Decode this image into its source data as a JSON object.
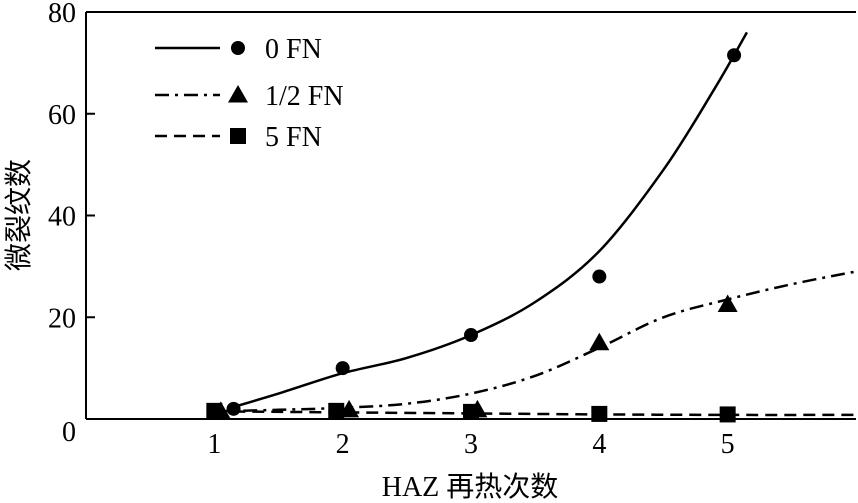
{
  "chart_data": {
    "type": "line",
    "title": "",
    "xlabel": "HAZ 再热次数",
    "ylabel": "微裂纹数",
    "xlim": [
      0,
      6
    ],
    "ylim": [
      0,
      80
    ],
    "x_ticks": [
      1,
      2,
      3,
      4,
      5
    ],
    "y_ticks": [
      0,
      20,
      40,
      60,
      80
    ],
    "grid": false,
    "legend_position": "top-left",
    "series": [
      {
        "name": "0 FN",
        "line_style": "solid",
        "marker": "circle",
        "points": [
          [
            1.15,
            2
          ],
          [
            2.0,
            10
          ],
          [
            3.0,
            16.5
          ],
          [
            4.0,
            28
          ],
          [
            5.05,
            71.5
          ]
        ],
        "curve": [
          [
            1.1,
            2
          ],
          [
            1.5,
            5
          ],
          [
            2.0,
            9
          ],
          [
            2.5,
            12
          ],
          [
            3.0,
            16.5
          ],
          [
            3.5,
            23
          ],
          [
            4.0,
            33
          ],
          [
            4.5,
            49
          ],
          [
            4.9,
            65
          ],
          [
            5.15,
            76
          ]
        ]
      },
      {
        "name": "1/2 FN",
        "line_style": "dashdot",
        "marker": "triangle",
        "points": [
          [
            1.05,
            1.5
          ],
          [
            2.05,
            1.8
          ],
          [
            3.05,
            1.8
          ],
          [
            4.0,
            15
          ],
          [
            5.0,
            22.5
          ]
        ],
        "curve": [
          [
            1.0,
            1.5
          ],
          [
            1.5,
            1.8
          ],
          [
            2.0,
            2.2
          ],
          [
            2.5,
            3
          ],
          [
            3.0,
            5
          ],
          [
            3.5,
            8.5
          ],
          [
            4.0,
            14
          ],
          [
            4.5,
            20
          ],
          [
            5.0,
            23.5
          ],
          [
            5.5,
            26.5
          ],
          [
            6.0,
            29
          ]
        ]
      },
      {
        "name": "5 FN",
        "line_style": "dashed",
        "marker": "square",
        "points": [
          [
            1.0,
            1.6
          ],
          [
            1.95,
            1.6
          ],
          [
            3.0,
            1.4
          ],
          [
            4.0,
            1.0
          ],
          [
            5.0,
            0.9
          ]
        ],
        "curve": [
          [
            1.0,
            1.5
          ],
          [
            2.0,
            1.3
          ],
          [
            3.0,
            1.1
          ],
          [
            4.0,
            0.9
          ],
          [
            5.0,
            0.8
          ],
          [
            6.0,
            0.8
          ]
        ]
      }
    ]
  }
}
